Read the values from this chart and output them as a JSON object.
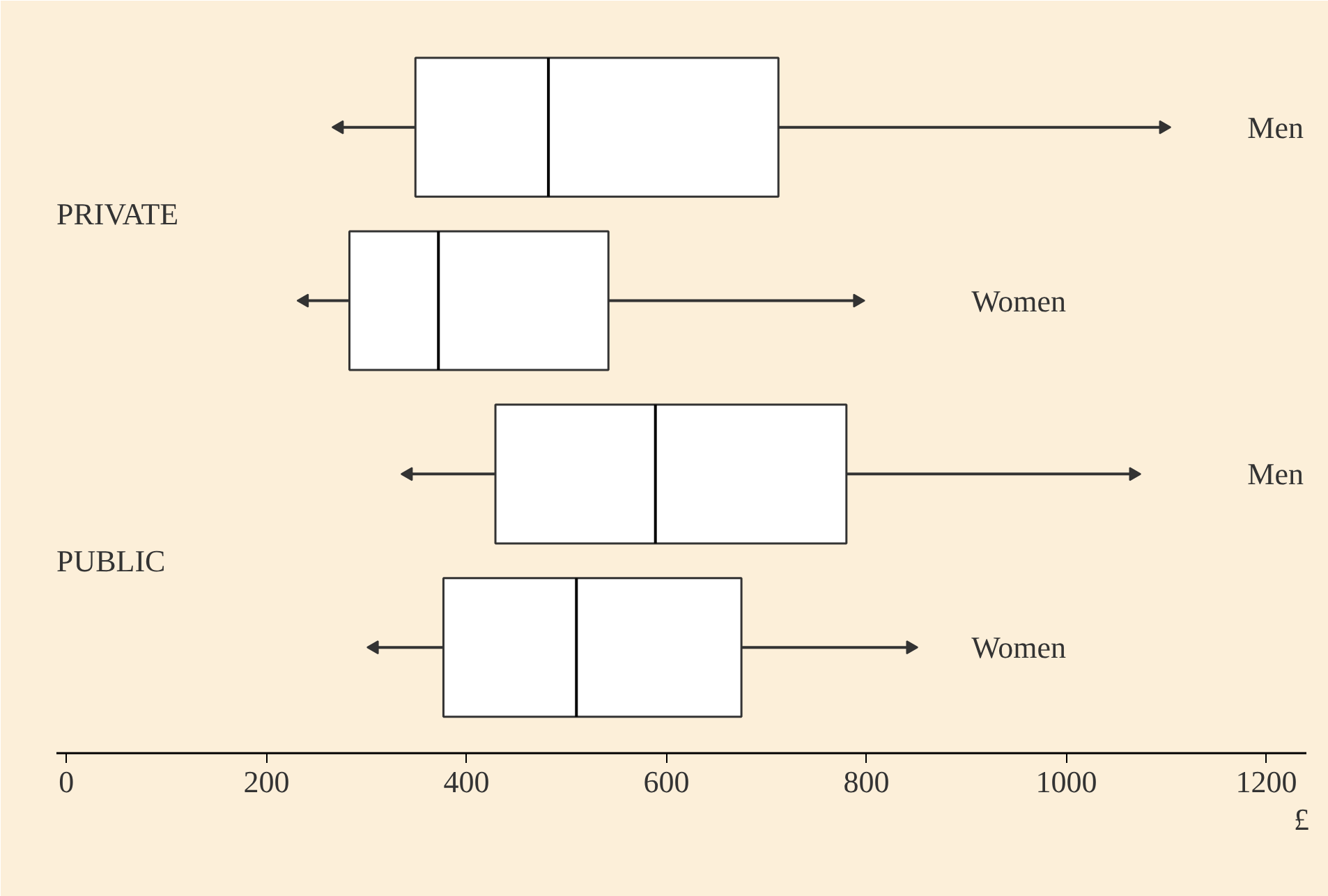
{
  "chart_data": {
    "type": "box",
    "orientation": "horizontal",
    "xlabel": "£",
    "categories": [
      "Men",
      "Women",
      "Men",
      "Women"
    ],
    "annotations": [
      "PRIVATE",
      "PUBLIC"
    ],
    "boxes": [
      {
        "low": 273,
        "q1": 349,
        "median": 482,
        "q3": 712,
        "high": 1097
      },
      {
        "low": 238,
        "q1": 283,
        "median": 372,
        "q3": 542,
        "high": 791
      },
      {
        "low": 342,
        "q1": 429,
        "median": 589,
        "q3": 780,
        "high": 1067
      },
      {
        "low": 308,
        "q1": 377,
        "median": 510,
        "q3": 675,
        "high": 844
      }
    ],
    "xlim": [
      -10,
      1240
    ],
    "xticks": [
      0,
      200,
      400,
      600,
      800,
      1000,
      1200
    ],
    "grid": false
  }
}
